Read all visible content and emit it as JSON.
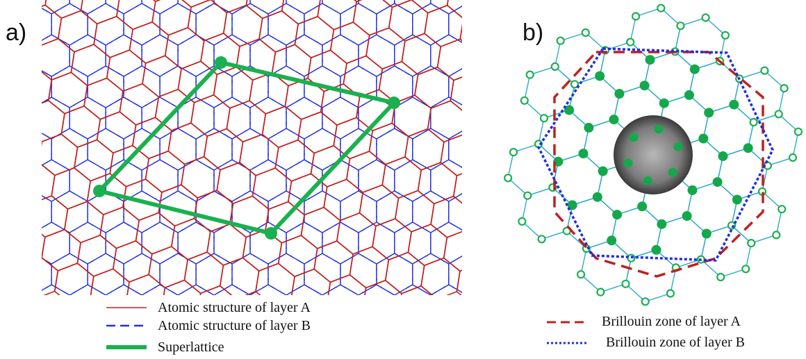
{
  "panels": {
    "a": {
      "label": "a)",
      "legend": [
        {
          "text": "Atomic structure of layer A",
          "color": "#c0201e",
          "style": "solid-thin"
        },
        {
          "text": "Atomic structure of layer B",
          "color": "#1f2fe0",
          "style": "dashed"
        },
        {
          "text": "Superlattice",
          "color": "#1bb04f",
          "style": "solid-thick"
        }
      ]
    },
    "b": {
      "label": "b)",
      "legend": [
        {
          "text": "Brillouin zone of layer A",
          "color": "#c0201e",
          "style": "dashed"
        },
        {
          "text": "Brillouin zone of layer B",
          "color": "#1f2fe0",
          "style": "dotted"
        }
      ]
    }
  },
  "colors": {
    "layer_a": "#c0201e",
    "layer_b": "#1f2fe0",
    "superlattice": "#1bb04f",
    "reciprocal_lattice": "#2ba9d0"
  }
}
